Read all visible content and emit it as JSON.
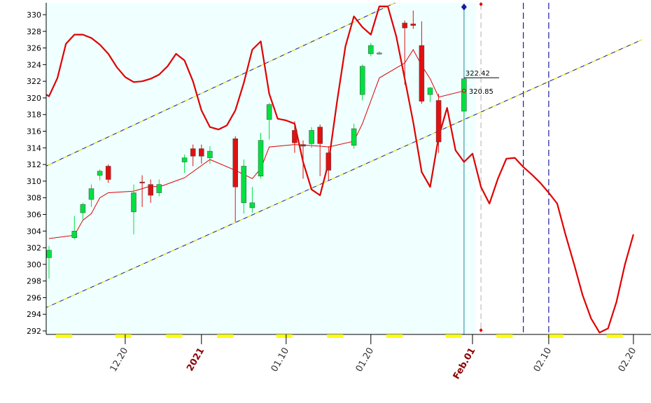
{
  "chart_data": {
    "type": "candlestick",
    "y_ticks": [
      292,
      294,
      296,
      298,
      300,
      302,
      304,
      306,
      308,
      310,
      312,
      314,
      316,
      318,
      320,
      322,
      324,
      326,
      328,
      330
    ],
    "ylim": [
      291.7,
      331.3
    ],
    "x_tick_labels": [
      {
        "label": "12.20",
        "day": 9,
        "year_marker": false
      },
      {
        "label": "2021",
        "day": 18,
        "year_marker": true
      },
      {
        "label": "01.10",
        "day": 28,
        "year_marker": false
      },
      {
        "label": "01.20",
        "day": 38,
        "year_marker": false
      },
      {
        "label": "Feb.01",
        "day": 50,
        "year_marker": true
      },
      {
        "label": "02.10",
        "day": 59,
        "year_marker": false
      },
      {
        "label": "02.20",
        "day": 69,
        "year_marker": false
      }
    ],
    "last_high_label": "322.42",
    "last_close_label": "320.85",
    "candles": [
      {
        "day": 0,
        "o": 300.8,
        "h": 302.2,
        "l": 298.3,
        "c": 301.7
      },
      {
        "day": 3,
        "o": 303.2,
        "h": 305.8,
        "l": 303.0,
        "c": 304.0
      },
      {
        "day": 4,
        "o": 306.2,
        "h": 307.4,
        "l": 305.3,
        "c": 307.2
      },
      {
        "day": 5,
        "o": 307.8,
        "h": 309.6,
        "l": 306.9,
        "c": 309.1
      },
      {
        "day": 6,
        "o": 310.7,
        "h": 311.4,
        "l": 310.1,
        "c": 311.2
      },
      {
        "day": 7,
        "o": 311.8,
        "h": 312.0,
        "l": 309.8,
        "c": 310.2
      },
      {
        "day": 10,
        "o": 306.3,
        "h": 309.6,
        "l": 303.6,
        "c": 308.6
      },
      {
        "day": 11,
        "o": 309.9,
        "h": 310.7,
        "l": 306.9,
        "c": 309.8
      },
      {
        "day": 12,
        "o": 309.6,
        "h": 310.2,
        "l": 307.4,
        "c": 308.3
      },
      {
        "day": 13,
        "o": 308.6,
        "h": 310.2,
        "l": 308.2,
        "c": 309.6
      },
      {
        "day": 16,
        "o": 312.3,
        "h": 313.2,
        "l": 311.0,
        "c": 312.8
      },
      {
        "day": 17,
        "o": 313.9,
        "h": 314.4,
        "l": 311.8,
        "c": 313.0
      },
      {
        "day": 18,
        "o": 313.9,
        "h": 314.4,
        "l": 312.1,
        "c": 313.0
      },
      {
        "day": 19,
        "o": 312.8,
        "h": 314.2,
        "l": 312.1,
        "c": 313.6
      },
      {
        "day": 22,
        "o": 315.1,
        "h": 315.4,
        "l": 305.1,
        "c": 309.3
      },
      {
        "day": 23,
        "o": 307.4,
        "h": 312.6,
        "l": 306.1,
        "c": 311.8
      },
      {
        "day": 24,
        "o": 306.8,
        "h": 309.3,
        "l": 306.2,
        "c": 307.4
      },
      {
        "day": 25,
        "o": 310.6,
        "h": 315.8,
        "l": 310.3,
        "c": 314.9
      },
      {
        "day": 26,
        "o": 317.4,
        "h": 319.4,
        "l": 315.0,
        "c": 319.2
      },
      {
        "day": 29,
        "o": 316.1,
        "h": 317.2,
        "l": 313.4,
        "c": 314.6
      },
      {
        "day": 30,
        "o": 314.4,
        "h": 314.9,
        "l": 310.3,
        "c": 314.2
      },
      {
        "day": 31,
        "o": 314.5,
        "h": 316.5,
        "l": 314.0,
        "c": 316.1
      },
      {
        "day": 32,
        "o": 316.5,
        "h": 316.8,
        "l": 310.6,
        "c": 314.5
      },
      {
        "day": 33,
        "o": 313.4,
        "h": 314.2,
        "l": 310.1,
        "c": 311.3
      },
      {
        "day": 36,
        "o": 314.3,
        "h": 316.9,
        "l": 313.9,
        "c": 316.3
      },
      {
        "day": 37,
        "o": 320.4,
        "h": 324.0,
        "l": 319.7,
        "c": 323.8
      },
      {
        "day": 38,
        "o": 325.3,
        "h": 326.6,
        "l": 325.0,
        "c": 326.3
      },
      {
        "day": 39,
        "o": 325.4,
        "h": 325.6,
        "l": 325.2,
        "c": 325.4
      },
      {
        "day": 42,
        "o": 329.0,
        "h": 329.3,
        "l": 321.6,
        "c": 328.4
      },
      {
        "day": 43,
        "o": 328.9,
        "h": 330.5,
        "l": 328.3,
        "c": 328.7
      },
      {
        "day": 44,
        "o": 326.3,
        "h": 329.2,
        "l": 319.3,
        "c": 319.6
      },
      {
        "day": 45,
        "o": 320.4,
        "h": 321.3,
        "l": 319.5,
        "c": 321.2
      },
      {
        "day": 46,
        "o": 319.7,
        "h": 320.5,
        "l": 313.4,
        "c": 314.7
      },
      {
        "day": 49,
        "o": 318.4,
        "h": 322.42,
        "l": 317.7,
        "c": 322.3
      }
    ],
    "moving_average": [
      {
        "day": 0,
        "v": 303.1
      },
      {
        "day": 3,
        "v": 303.5
      },
      {
        "day": 4,
        "v": 305.3
      },
      {
        "day": 5,
        "v": 306.1
      },
      {
        "day": 6,
        "v": 308.0
      },
      {
        "day": 7,
        "v": 308.6
      },
      {
        "day": 10,
        "v": 308.8
      },
      {
        "day": 12,
        "v": 309.4
      },
      {
        "day": 13,
        "v": 309.3
      },
      {
        "day": 16,
        "v": 310.4
      },
      {
        "day": 19,
        "v": 312.6
      },
      {
        "day": 22,
        "v": 311.3
      },
      {
        "day": 24,
        "v": 310.3
      },
      {
        "day": 25,
        "v": 311.5
      },
      {
        "day": 26,
        "v": 314.1
      },
      {
        "day": 29,
        "v": 314.4
      },
      {
        "day": 32,
        "v": 314.2
      },
      {
        "day": 33,
        "v": 314.1
      },
      {
        "day": 36,
        "v": 314.8
      },
      {
        "day": 37,
        "v": 316.9
      },
      {
        "day": 39,
        "v": 322.4
      },
      {
        "day": 42,
        "v": 324.2
      },
      {
        "day": 43,
        "v": 325.8
      },
      {
        "day": 44,
        "v": 323.9
      },
      {
        "day": 45,
        "v": 322.3
      },
      {
        "day": 46,
        "v": 320.1
      },
      {
        "day": 49,
        "v": 320.85
      }
    ],
    "cycle_curve": [
      {
        "day": -1,
        "v": 320.8
      },
      {
        "day": 0,
        "v": 320.2
      },
      {
        "day": 1,
        "v": 322.4
      },
      {
        "day": 2,
        "v": 326.5
      },
      {
        "day": 3,
        "v": 327.6
      },
      {
        "day": 4,
        "v": 327.6
      },
      {
        "day": 5,
        "v": 327.2
      },
      {
        "day": 6,
        "v": 326.4
      },
      {
        "day": 7,
        "v": 325.3
      },
      {
        "day": 8,
        "v": 323.7
      },
      {
        "day": 9,
        "v": 322.5
      },
      {
        "day": 10,
        "v": 321.9
      },
      {
        "day": 11,
        "v": 322.0
      },
      {
        "day": 12,
        "v": 322.3
      },
      {
        "day": 13,
        "v": 322.8
      },
      {
        "day": 14,
        "v": 323.8
      },
      {
        "day": 15,
        "v": 325.3
      },
      {
        "day": 16,
        "v": 324.5
      },
      {
        "day": 17,
        "v": 322.0
      },
      {
        "day": 18,
        "v": 318.5
      },
      {
        "day": 19,
        "v": 316.5
      },
      {
        "day": 20,
        "v": 316.2
      },
      {
        "day": 21,
        "v": 316.7
      },
      {
        "day": 22,
        "v": 318.5
      },
      {
        "day": 23,
        "v": 321.8
      },
      {
        "day": 24,
        "v": 325.8
      },
      {
        "day": 25,
        "v": 326.8
      },
      {
        "day": 26,
        "v": 320.5
      },
      {
        "day": 27,
        "v": 317.5
      },
      {
        "day": 28,
        "v": 317.3
      },
      {
        "day": 29,
        "v": 316.9
      },
      {
        "day": 30,
        "v": 312.3
      },
      {
        "day": 31,
        "v": 309.0
      },
      {
        "day": 32,
        "v": 308.3
      },
      {
        "day": 33,
        "v": 312.2
      },
      {
        "day": 34,
        "v": 319.5
      },
      {
        "day": 35,
        "v": 326.2
      },
      {
        "day": 36,
        "v": 329.8
      },
      {
        "day": 37,
        "v": 328.5
      },
      {
        "day": 38,
        "v": 327.6
      },
      {
        "day": 39,
        "v": 331.0
      },
      {
        "day": 40,
        "v": 331.0
      },
      {
        "day": 41,
        "v": 327.4
      },
      {
        "day": 42,
        "v": 322.3
      },
      {
        "day": 43,
        "v": 317.1
      },
      {
        "day": 44,
        "v": 311.1
      },
      {
        "day": 45,
        "v": 309.3
      },
      {
        "day": 46,
        "v": 315.3
      },
      {
        "day": 47,
        "v": 318.8
      },
      {
        "day": 48,
        "v": 313.7
      },
      {
        "day": 49,
        "v": 312.3
      },
      {
        "day": 50,
        "v": 313.3
      },
      {
        "day": 51,
        "v": 309.3
      },
      {
        "day": 52,
        "v": 307.3
      },
      {
        "day": 53,
        "v": 310.3
      },
      {
        "day": 54,
        "v": 312.7
      },
      {
        "day": 55,
        "v": 312.8
      },
      {
        "day": 56,
        "v": 311.7
      },
      {
        "day": 57,
        "v": 310.8
      },
      {
        "day": 58,
        "v": 309.8
      },
      {
        "day": 59,
        "v": 308.6
      },
      {
        "day": 60,
        "v": 307.3
      },
      {
        "day": 61,
        "v": 303.5
      },
      {
        "day": 62,
        "v": 300.0
      },
      {
        "day": 63,
        "v": 296.3
      },
      {
        "day": 64,
        "v": 293.5
      },
      {
        "day": 65,
        "v": 291.8
      },
      {
        "day": 66,
        "v": 292.3
      },
      {
        "day": 67,
        "v": 295.5
      },
      {
        "day": 68,
        "v": 300.0
      },
      {
        "day": 69,
        "v": 303.6
      }
    ],
    "channel_lines": [
      {
        "name": "upper",
        "day_start": -1,
        "v_start": 311.5,
        "day_end": 41,
        "v_end": 331.5
      },
      {
        "name": "lower",
        "day_start": -1,
        "v_start": 294.5,
        "day_end": 70,
        "v_end": 327.0
      }
    ],
    "vertical_markers": [
      {
        "day": 49,
        "style": "last-bar"
      },
      {
        "day": 51,
        "style": "dashed-gray"
      },
      {
        "day": 56,
        "style": "dashed-blue"
      },
      {
        "day": 59,
        "style": "dashed-blue"
      }
    ],
    "grid": false,
    "colors": {
      "plot_background": "#f0ffff",
      "up_candle": "#00e040",
      "down_candle": "#e01010",
      "cycle_curve": "#e00000",
      "moving_average": "#e00000",
      "channel": "#1a1a8c",
      "channel_dash": "#ffff00",
      "last_bar_line": "#1a8a9a",
      "marker_blue": "#1a1aa0",
      "axis_text": "#000000",
      "axis_text_marker": "#8b0000",
      "x_band": "#ffff00"
    }
  }
}
